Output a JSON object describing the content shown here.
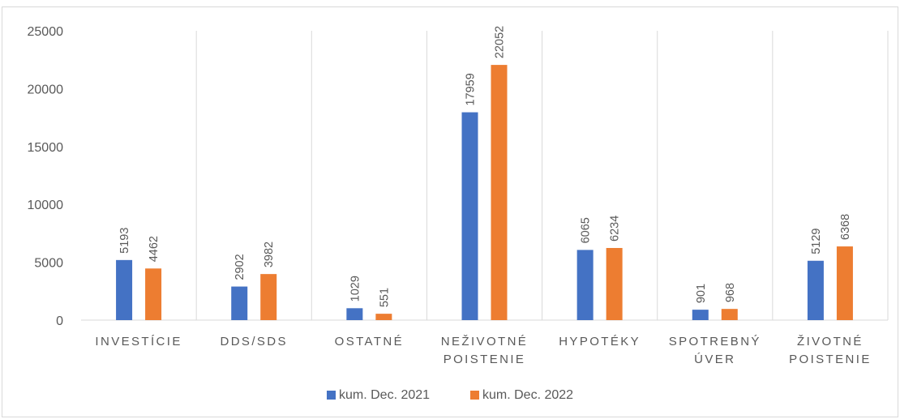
{
  "chart_data": {
    "type": "bar",
    "title": "",
    "xlabel": "",
    "ylabel": "",
    "ylim": [
      0,
      25000
    ],
    "yticks": [
      0,
      5000,
      10000,
      15000,
      20000,
      25000
    ],
    "grid": "vertical category separators",
    "legend_position": "bottom",
    "categories": [
      [
        "INVESTÍCIE"
      ],
      [
        "DDS/SDS"
      ],
      [
        "OSTATNÉ"
      ],
      [
        "NEŽIVOTNÉ",
        "POISTENIE"
      ],
      [
        "HYPOTÉKY"
      ],
      [
        "SPOTREBNÝ",
        "ÚVER"
      ],
      [
        "ŽIVOTNÉ",
        "POISTENIE"
      ]
    ],
    "series": [
      {
        "name": "kum. Dec. 2021",
        "color": "#4472c4",
        "values": [
          5193,
          2902,
          1029,
          17959,
          6065,
          901,
          5129
        ]
      },
      {
        "name": "kum. Dec. 2022",
        "color": "#ed7d31",
        "values": [
          4462,
          3982,
          551,
          22052,
          6234,
          968,
          6368
        ]
      }
    ]
  }
}
